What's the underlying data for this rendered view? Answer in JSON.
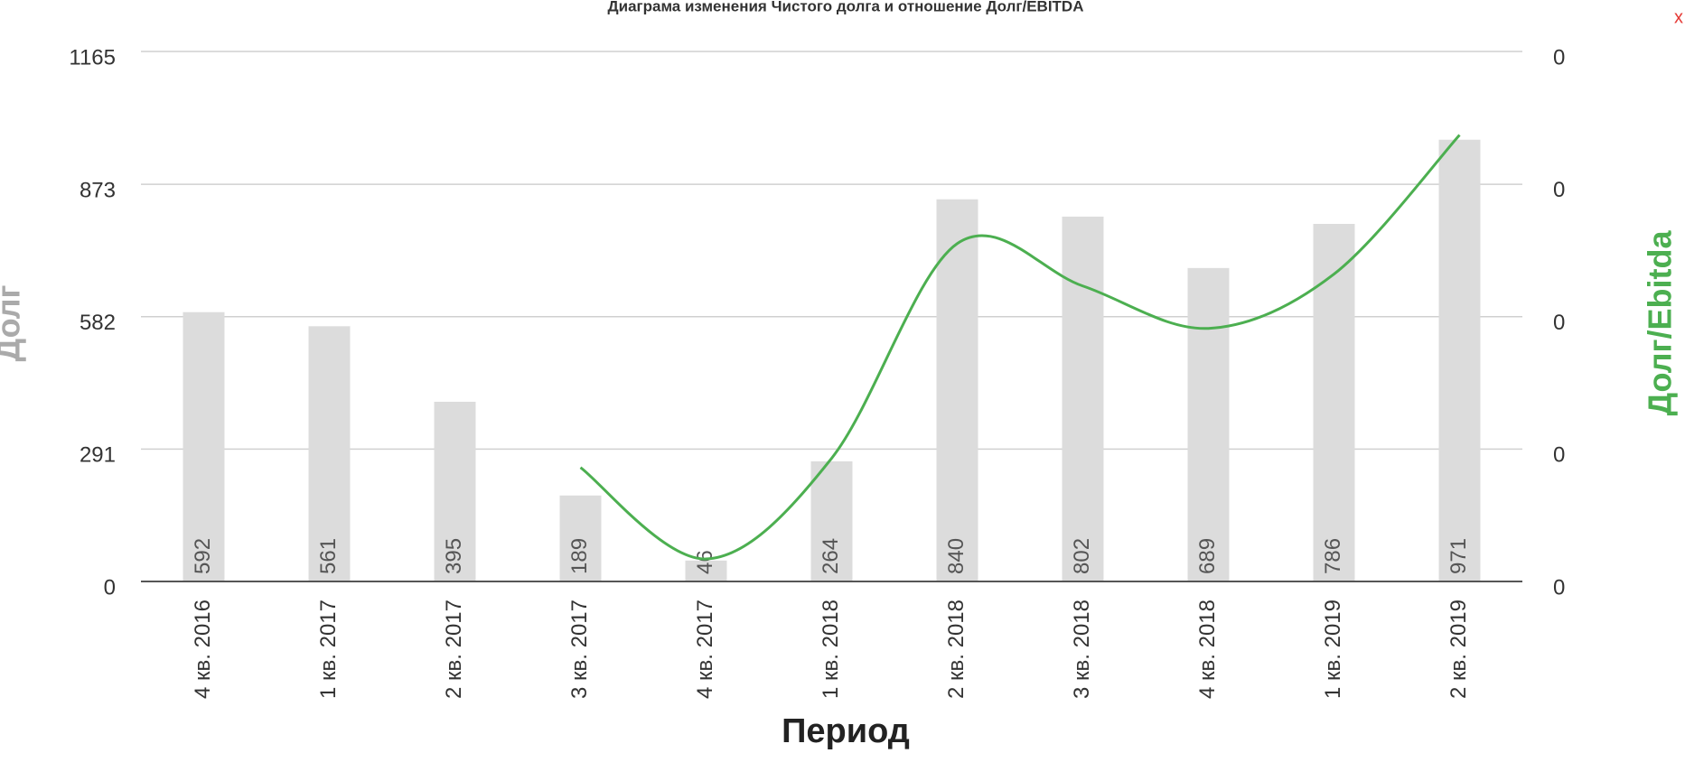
{
  "chart_data": {
    "type": "bar-line",
    "title": "Диаграма изменения Чистого долга и отношение Долг/EBITDA",
    "close_label": "x",
    "x_label": "Период",
    "y_label": "Долг",
    "y2_label": "Долг/Ebitda",
    "categories": [
      "4 кв. 2016",
      "1 кв. 2017",
      "2 кв. 2017",
      "3 кв. 2017",
      "4 кв. 2017",
      "1 кв. 2018",
      "2 кв. 2018",
      "3 кв. 2018",
      "4 кв. 2018",
      "1 кв. 2019",
      "2 кв. 2019"
    ],
    "series": [
      {
        "name": "Долг",
        "type": "bar",
        "color": "#dcdcdc",
        "values": [
          592,
          561,
          395,
          189,
          46,
          264,
          840,
          802,
          689,
          786,
          971
        ]
      },
      {
        "name": "Долг/Ebitda",
        "type": "line",
        "axis": "y2",
        "color": "#4caf50",
        "values": [
          null,
          null,
          null,
          0.086,
          0.017,
          0.093,
          0.255,
          0.223,
          0.191,
          0.232,
          0.337
        ]
      }
    ],
    "ylim": [
      0,
      1165
    ],
    "yticks": [
      0,
      291,
      582,
      873,
      1165
    ],
    "y2lim": [
      0,
      0.4
    ],
    "y2ticks": [
      {
        "value": 0,
        "label": "0"
      },
      {
        "value": 0.1,
        "label": "0"
      },
      {
        "value": 0.2,
        "label": "0"
      },
      {
        "value": 0.3,
        "label": "0"
      },
      {
        "value": 0.4,
        "label": "0"
      }
    ],
    "grid": true
  }
}
